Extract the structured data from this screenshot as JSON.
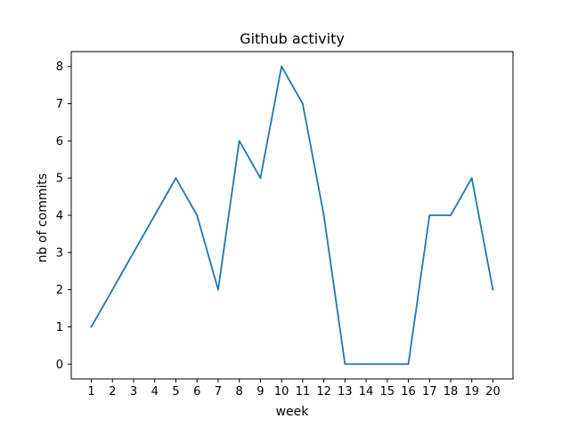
{
  "chart_data": {
    "type": "line",
    "title": "Github activity",
    "xlabel": "week",
    "ylabel": "nb of commits",
    "x": [
      1,
      2,
      3,
      4,
      5,
      6,
      7,
      8,
      9,
      10,
      11,
      12,
      13,
      14,
      15,
      16,
      17,
      18,
      19,
      20
    ],
    "series": [
      {
        "values": [
          1,
          2,
          3,
          4,
          5,
          4,
          2,
          6,
          5,
          8,
          7,
          4,
          0,
          0,
          0,
          0,
          4,
          4,
          5,
          2
        ],
        "color": "#1f77b4"
      }
    ],
    "xticks": [
      "1",
      "2",
      "3",
      "4",
      "5",
      "6",
      "7",
      "8",
      "9",
      "10",
      "11",
      "12",
      "13",
      "14",
      "15",
      "16",
      "17",
      "18",
      "19",
      "20"
    ],
    "yticks": [
      "0",
      "1",
      "2",
      "3",
      "4",
      "5",
      "6",
      "7",
      "8"
    ],
    "xlim": [
      0.05,
      20.95
    ],
    "ylim": [
      -0.4,
      8.4
    ],
    "grid": false,
    "legend": "none"
  }
}
